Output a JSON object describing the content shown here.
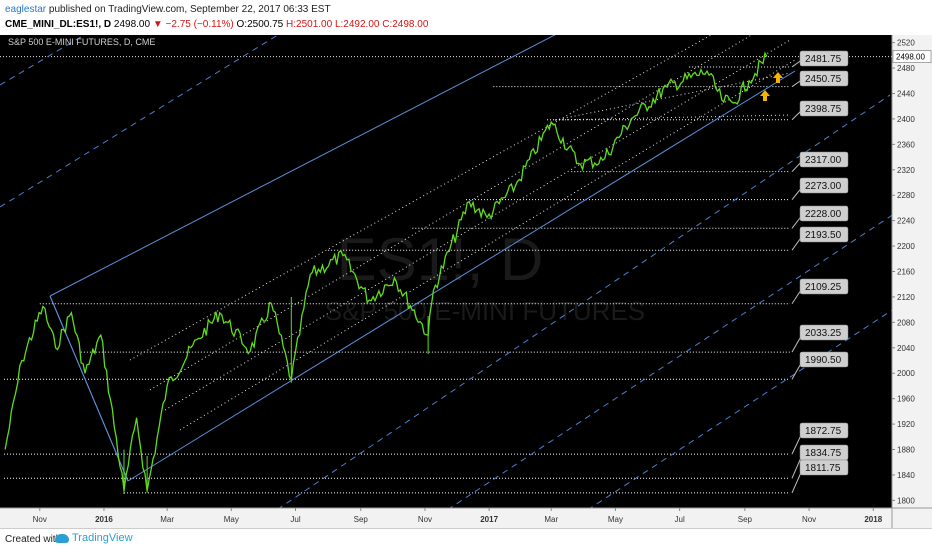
{
  "header": {
    "author": "eaglestar",
    "published_text": "published on TradingView.com, September 22, 2017 06:33 EST",
    "symbol": "CME_MINI_DL:ES1!, D",
    "last_price": "2498.00",
    "change": "−2.75 (−0.11%)",
    "ohlc": [
      "O:2500.75",
      "H:2501.00",
      "L:2492.00",
      "C:2498.00"
    ]
  },
  "chart_data": {
    "type": "candlestick",
    "title": "S&P 500 E-MINI FUTURES, D, CME",
    "watermark_symbol": "ES1!, D",
    "watermark_name": "S&P 500 E-MINI FUTURES",
    "x_tick_labels": [
      "Nov",
      "2016",
      "Mar",
      "May",
      "Jul",
      "Sep",
      "Nov",
      "2017",
      "Mar",
      "May",
      "Jul",
      "Sep",
      "Nov",
      "2018"
    ],
    "y_ticks": [
      1800,
      1840,
      1880,
      1920,
      1960,
      2000,
      2040,
      2080,
      2120,
      2160,
      2200,
      2240,
      2280,
      2320,
      2360,
      2400,
      2440,
      2480,
      2520
    ],
    "ylim": [
      1788,
      2532
    ],
    "last_price_label": "2498.00",
    "price_series": [
      {
        "date": "2015-09-29",
        "close": 1880
      },
      {
        "date": "2015-10-15",
        "close": 2020
      },
      {
        "date": "2015-11-04",
        "close": 2105
      },
      {
        "date": "2015-11-16",
        "close": 2040
      },
      {
        "date": "2015-12-01",
        "close": 2095
      },
      {
        "date": "2015-12-14",
        "close": 2000
      },
      {
        "date": "2015-12-29",
        "close": 2060
      },
      {
        "date": "2016-01-20",
        "close": 1815
      },
      {
        "date": "2016-02-01",
        "close": 1930
      },
      {
        "date": "2016-02-11",
        "close": 1815
      },
      {
        "date": "2016-03-01",
        "close": 1980
      },
      {
        "date": "2016-03-31",
        "close": 2055
      },
      {
        "date": "2016-04-20",
        "close": 2095
      },
      {
        "date": "2016-05-19",
        "close": 2035
      },
      {
        "date": "2016-06-08",
        "close": 2110
      },
      {
        "date": "2016-06-27",
        "close": 1990
      },
      {
        "date": "2016-07-15",
        "close": 2155
      },
      {
        "date": "2016-08-15",
        "close": 2185
      },
      {
        "date": "2016-09-09",
        "close": 2115
      },
      {
        "date": "2016-10-03",
        "close": 2150
      },
      {
        "date": "2016-11-04",
        "close": 2060
      },
      {
        "date": "2016-11-09",
        "close": 2130
      },
      {
        "date": "2016-12-13",
        "close": 2270
      },
      {
        "date": "2016-12-30",
        "close": 2245
      },
      {
        "date": "2017-01-26",
        "close": 2295
      },
      {
        "date": "2017-03-01",
        "close": 2395
      },
      {
        "date": "2017-03-27",
        "close": 2330
      },
      {
        "date": "2017-04-19",
        "close": 2335
      },
      {
        "date": "2017-05-16",
        "close": 2400
      },
      {
        "date": "2017-06-19",
        "close": 2450
      },
      {
        "date": "2017-07-27",
        "close": 2475
      },
      {
        "date": "2017-08-10",
        "close": 2430
      },
      {
        "date": "2017-08-21",
        "close": 2425
      },
      {
        "date": "2017-09-05",
        "close": 2460
      },
      {
        "date": "2017-09-22",
        "close": 2498
      }
    ],
    "level_labels": [
      "2481.75",
      "2450.75",
      "2398.75",
      "2317.00",
      "2273.00",
      "2228.00",
      "2193.50",
      "2109.25",
      "2033.25",
      "1990.50",
      "1872.75",
      "1834.75",
      "1811.75"
    ],
    "levels": [
      2481.75,
      2450.75,
      2398.75,
      2317.0,
      2273.0,
      2228.0,
      2193.5,
      2109.25,
      2033.25,
      1990.5,
      1872.75,
      1834.75,
      1811.75
    ],
    "colors": {
      "price": "#5fdc1e",
      "trendline": "#5b8fd9",
      "channel_dash": "#4a7fd0",
      "levels": "#ffffff",
      "labels": "#c8c8c8",
      "arrows": "#f5b300"
    }
  },
  "footer": {
    "created_with": "Created with",
    "brand": "TradingView"
  }
}
